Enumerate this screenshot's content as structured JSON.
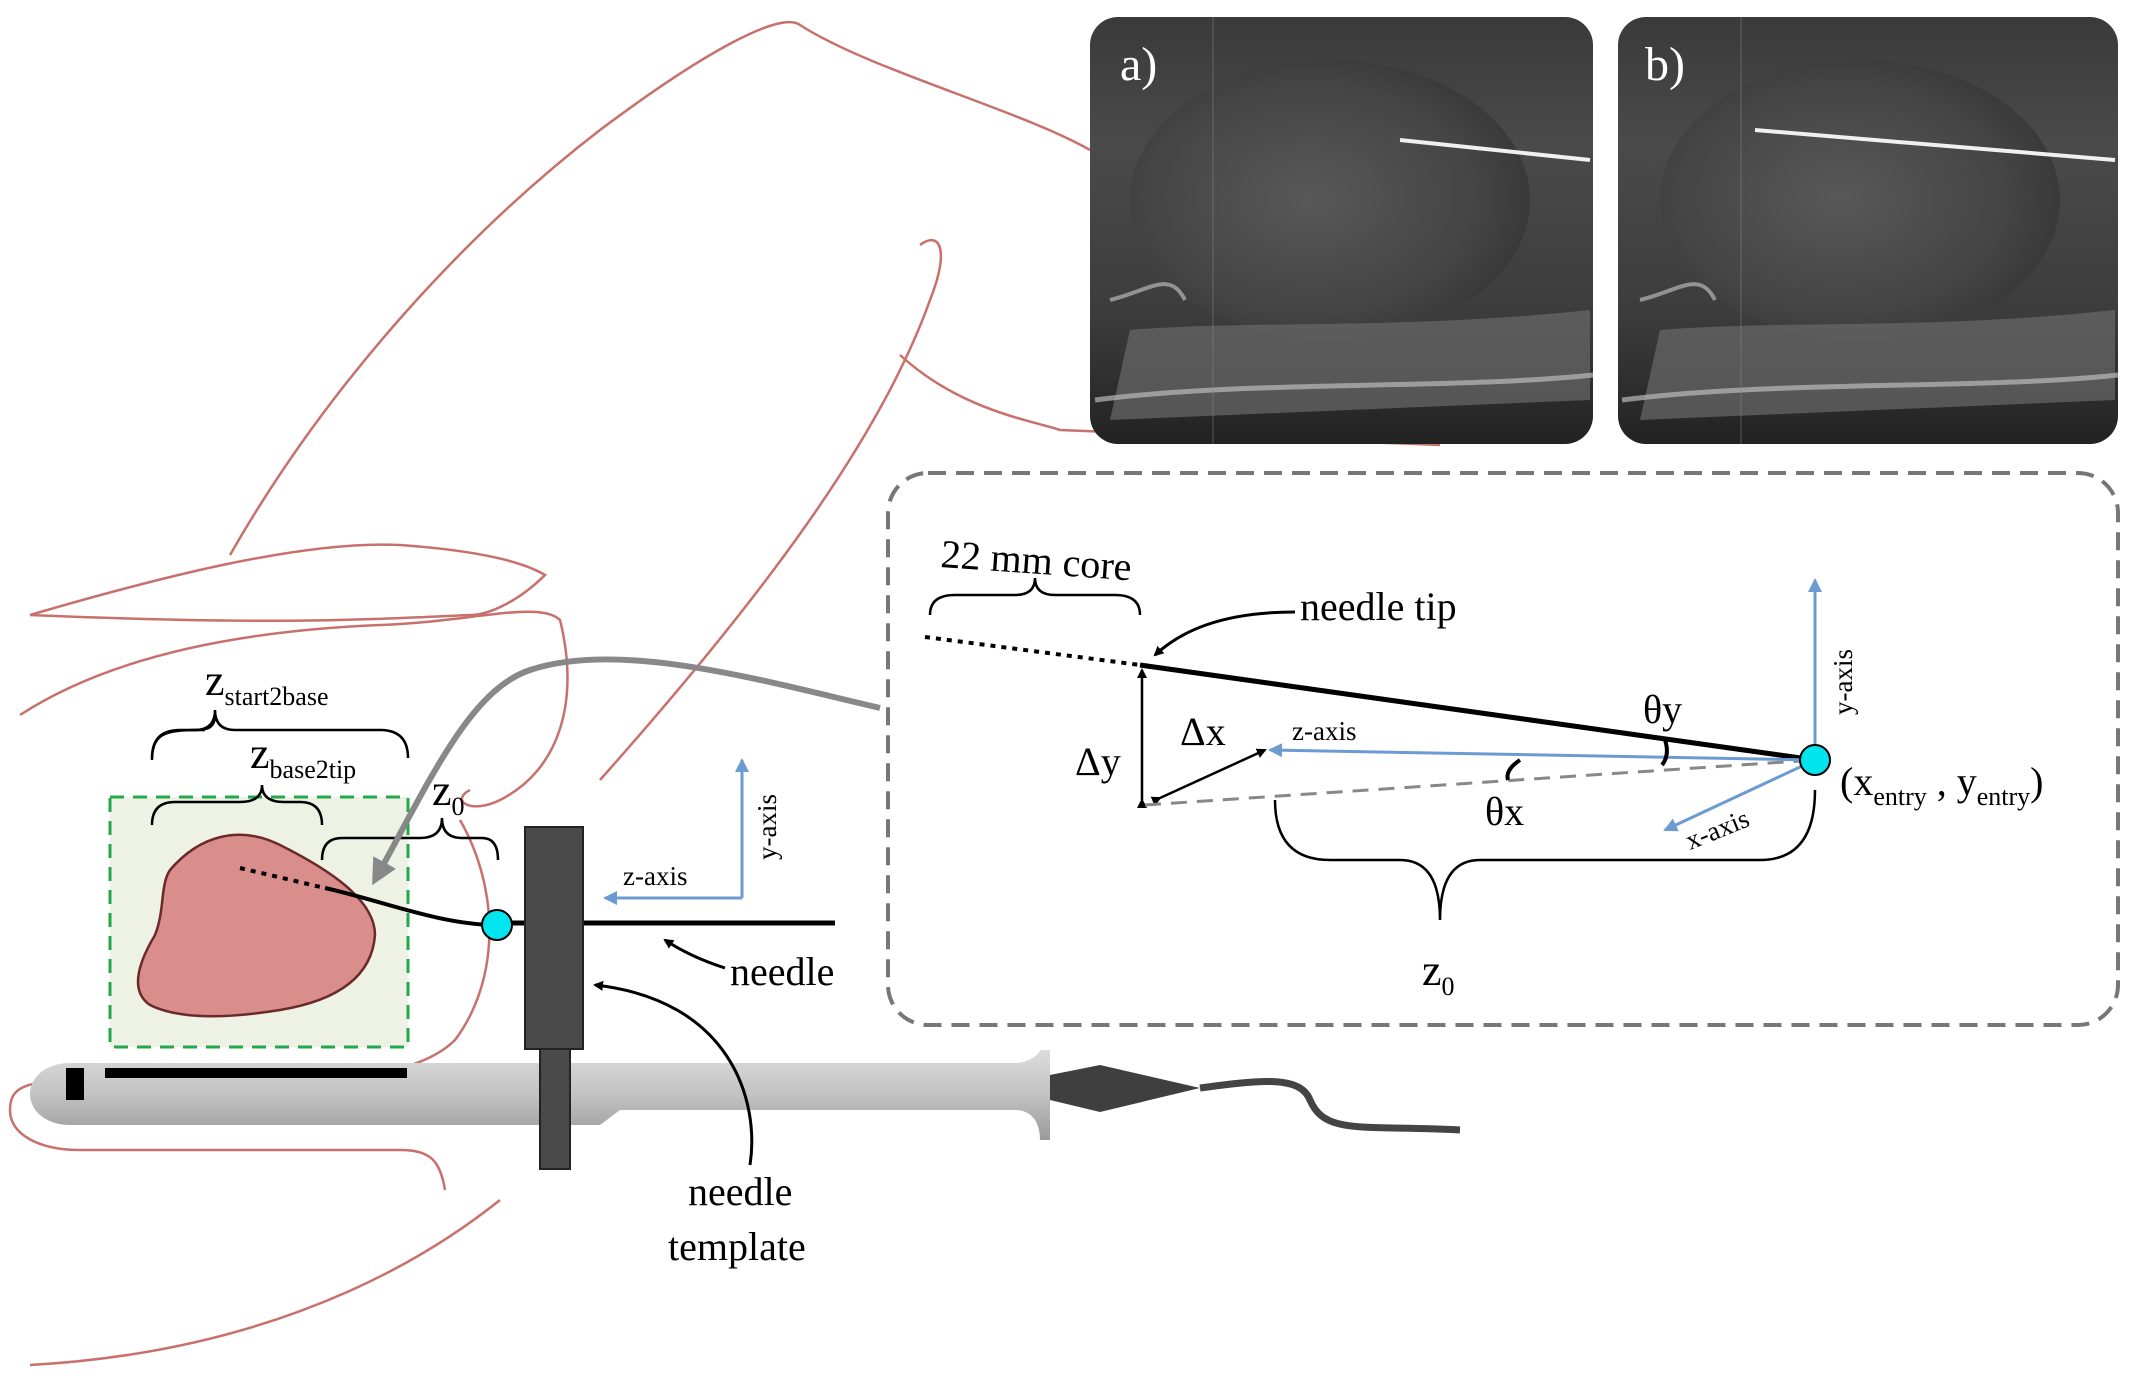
{
  "panel_labels": {
    "a": "a)",
    "b": "b)"
  },
  "left_diagram": {
    "z_start2base": {
      "base": "z",
      "sub": "start2base"
    },
    "z_base2tip": {
      "base": "z",
      "sub": "base2tip"
    },
    "z0": {
      "base": "z",
      "sub": "0"
    },
    "z_axis": "z-axis",
    "y_axis": "y-axis",
    "needle": "needle",
    "needle_template": [
      "needle",
      "template"
    ]
  },
  "inset": {
    "core_label": "22 mm core",
    "needle_tip": "needle tip",
    "theta_y": "θy",
    "theta_x": "θx",
    "delta_y": "Δy",
    "delta_x": "Δx",
    "z_axis": "z-axis",
    "y_axis": "y-axis",
    "x_axis": "x-axis",
    "entry": {
      "open": "(x",
      "sub1": "entry",
      "mid": " , y",
      "sub2": "entry",
      "close": ")"
    },
    "z0": {
      "base": "z",
      "sub": "0"
    }
  },
  "colors": {
    "body_outline": "#c8706c",
    "prostate": "#d98e8c",
    "roi_fill": "#eef2e4",
    "roi_border": "#23a84a",
    "entry_point": "#00e5ee",
    "axis_blue": "#6c9bd2",
    "probe": "#c8c8c8",
    "template": "#4a4a4a",
    "arrow_gray": "#888888",
    "inset_border": "#777777"
  }
}
